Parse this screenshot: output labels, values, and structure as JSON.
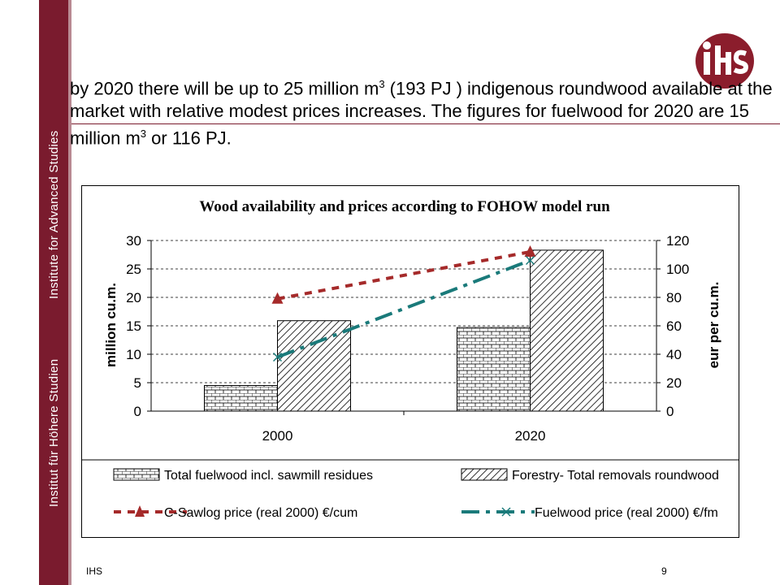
{
  "sidebar": {
    "text_1": "Institut für Höhere Studien",
    "text_2": "Institute for Advanced Studies"
  },
  "logo": {
    "icon": "ihs-logo-icon",
    "color": "#8b1d2c"
  },
  "intro": {
    "part1": "by 2020 there will be up to 25 million m",
    "sup1": "3",
    "part2": " (193 PJ ) indigenous roundwood available at the market with relative modest prices increases. The figures for fuelwood for 2020 are 15 million m",
    "sup2": "3",
    "part3": " or 116 PJ."
  },
  "chart_data": {
    "type": "bar",
    "title": "Wood availability and prices according to FOHOW model run",
    "categories": [
      "2000",
      "2020"
    ],
    "ylabel": "million cu.m.",
    "ylim": [
      0,
      30
    ],
    "yticks": [
      0,
      5,
      10,
      15,
      20,
      25,
      30
    ],
    "y2label": "eur per cu.m.",
    "y2lim": [
      0,
      120
    ],
    "y2ticks": [
      0,
      20,
      40,
      60,
      80,
      100,
      120
    ],
    "grid": true,
    "legend_position": "bottom",
    "series": [
      {
        "name": "Total fuelwood incl. sawmill residues",
        "type": "bar",
        "axis": "left",
        "values": [
          4.5,
          14.7
        ]
      },
      {
        "name": "Forestry- Total removals roundwood",
        "type": "bar",
        "axis": "left",
        "values": [
          15.9,
          28.3
        ]
      },
      {
        "name": "C-Sawlog price (real 2000) €/cum",
        "type": "line",
        "axis": "right",
        "values": [
          79,
          112
        ],
        "color": "#a52a2a"
      },
      {
        "name": "Fuelwood price (real 2000) €/fm",
        "type": "line",
        "axis": "right",
        "values": [
          38,
          106
        ],
        "color": "#1a7a7a"
      }
    ]
  },
  "footer": {
    "left": "IHS",
    "page": "9"
  }
}
